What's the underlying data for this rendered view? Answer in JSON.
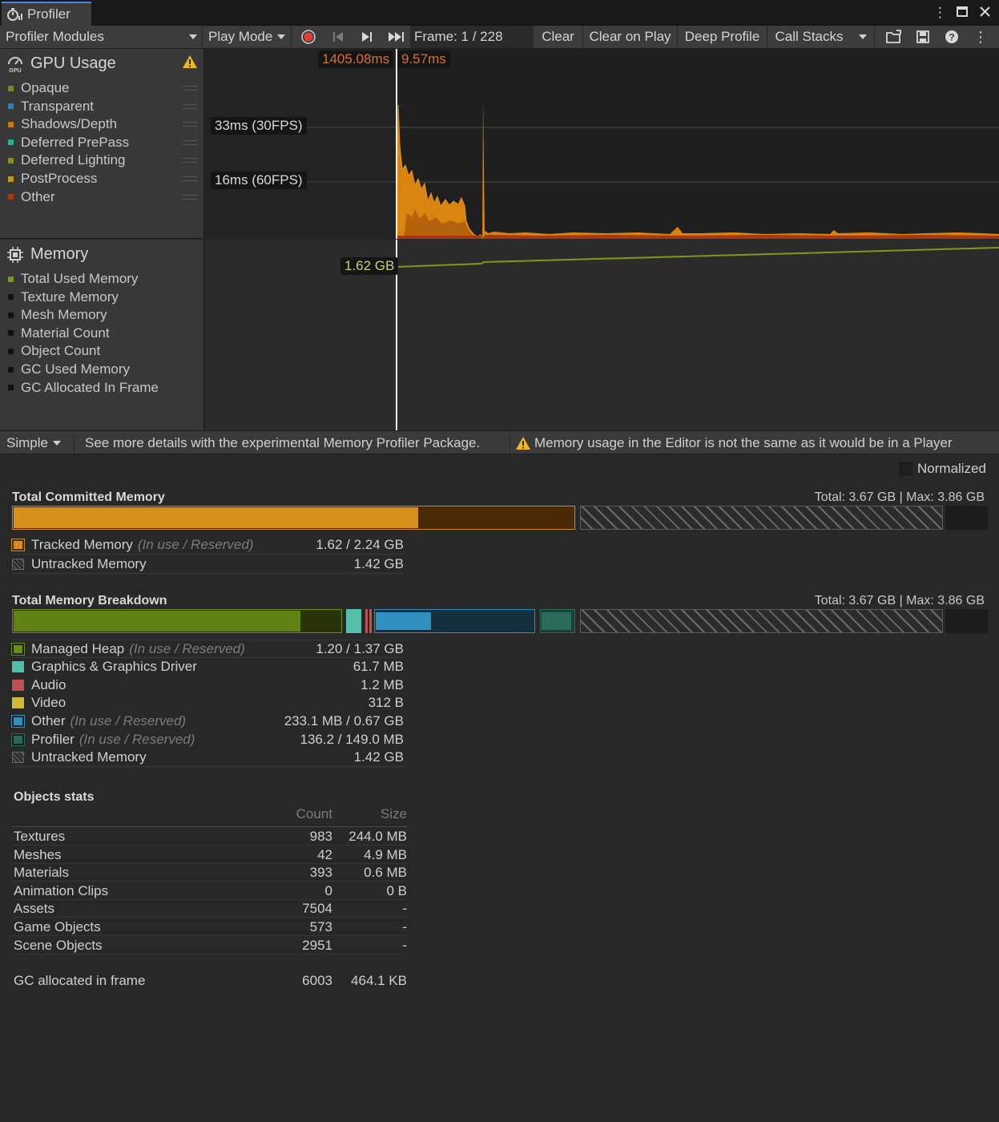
{
  "window": {
    "tab_title": "Profiler"
  },
  "toolbar": {
    "modules": "Profiler Modules",
    "play_mode": "Play Mode",
    "frame": "Frame: 1 / 228",
    "clear": "Clear",
    "clear_on_play": "Clear on Play",
    "deep_profile": "Deep Profile",
    "call_stacks": "Call Stacks"
  },
  "gpu": {
    "title": "GPU Usage",
    "legend": [
      {
        "label": "Opaque",
        "color": "#6f8f1f"
      },
      {
        "label": "Transparent",
        "color": "#2f7fb5"
      },
      {
        "label": "Shadows/Depth",
        "color": "#c27a16"
      },
      {
        "label": "Deferred PrePass",
        "color": "#37a899"
      },
      {
        "label": "Deferred Lighting",
        "color": "#8c8c1f"
      },
      {
        "label": "PostProcess",
        "color": "#b89a1f"
      },
      {
        "label": "Other",
        "color": "#9c3a1c"
      }
    ],
    "selected_value_left": "1405.08ms",
    "selected_value_right": "9.57ms",
    "line_33": "33ms (30FPS)",
    "line_16": "16ms (60FPS)"
  },
  "memory": {
    "title": "Memory",
    "legend": [
      {
        "label": "Total Used Memory",
        "color": "#7a9a1a"
      },
      {
        "label": "Texture Memory",
        "color": "#111111"
      },
      {
        "label": "Mesh Memory",
        "color": "#111111"
      },
      {
        "label": "Material Count",
        "color": "#111111"
      },
      {
        "label": "Object Count",
        "color": "#111111"
      },
      {
        "label": "GC Used Memory",
        "color": "#111111"
      },
      {
        "label": "GC Allocated In Frame",
        "color": "#111111"
      }
    ],
    "selected_value": "1.62 GB"
  },
  "status": {
    "mode": "Simple",
    "hint": "See more details with the experimental Memory Profiler Package.",
    "warning": "Memory usage in the Editor is not the same as it would be in a Player"
  },
  "details": {
    "normalized": "Normalized",
    "committed": {
      "title": "Total Committed Memory",
      "totals": "Total: 3.67 GB | Max: 3.86 GB",
      "tracked_fill": 0.72,
      "rows": [
        {
          "label": "Tracked Memory",
          "sub": "(In use / Reserved)",
          "value": "1.62 / 2.24 GB"
        },
        {
          "label": "Untracked Memory",
          "sub": "",
          "value": "1.42 GB"
        }
      ]
    },
    "breakdown": {
      "title": "Total Memory Breakdown",
      "totals": "Total: 3.67 GB | Max: 3.86 GB",
      "rows": [
        {
          "label": "Managed Heap",
          "sub": "(In use / Reserved)",
          "value": "1.20 / 1.37 GB",
          "color": "#6a8f10"
        },
        {
          "label": "Graphics & Graphics Driver",
          "sub": "",
          "value": "61.7 MB",
          "color": "#4fbfa8"
        },
        {
          "label": "Audio",
          "sub": "",
          "value": "1.2 MB",
          "color": "#c0504d"
        },
        {
          "label": "Video",
          "sub": "",
          "value": "312 B",
          "color": "#d4b83a"
        },
        {
          "label": "Other",
          "sub": "(In use / Reserved)",
          "value": "233.1 MB / 0.67 GB",
          "color": "#2f8fbf"
        },
        {
          "label": "Profiler",
          "sub": "(In use / Reserved)",
          "value": "136.2 / 149.0 MB",
          "color": "#2a6a5a"
        },
        {
          "label": "Untracked Memory",
          "sub": "",
          "value": "1.42 GB",
          "color": "#555555"
        }
      ]
    },
    "objects": {
      "title": "Objects stats",
      "col_count": "Count",
      "col_size": "Size",
      "rows": [
        {
          "name": "Textures",
          "count": "983",
          "size": "244.0 MB"
        },
        {
          "name": "Meshes",
          "count": "42",
          "size": "4.9 MB"
        },
        {
          "name": "Materials",
          "count": "393",
          "size": "0.6 MB"
        },
        {
          "name": "Animation Clips",
          "count": "0",
          "size": "0 B"
        },
        {
          "name": "Assets",
          "count": "7504",
          "size": "-"
        },
        {
          "name": "Game Objects",
          "count": "573",
          "size": "-"
        },
        {
          "name": "Scene Objects",
          "count": "2951",
          "size": "-"
        }
      ],
      "gc": {
        "name": "GC allocated in frame",
        "count": "6003",
        "size": "464.1 KB"
      }
    }
  }
}
